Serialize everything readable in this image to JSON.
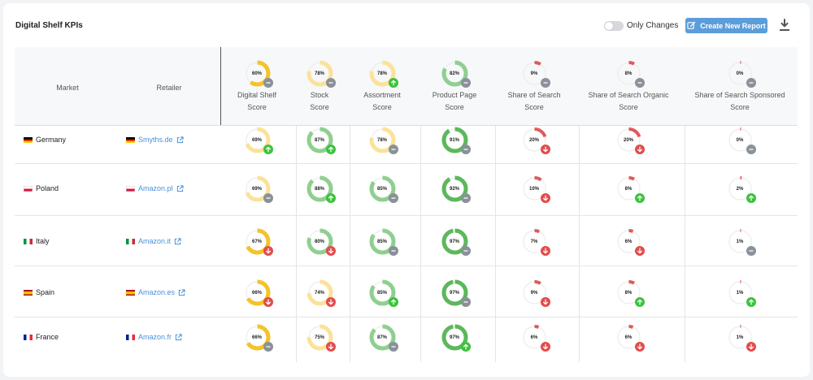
{
  "page": {
    "title": "Digital Shelf KPIs",
    "toggle_label": "Only Changes",
    "toggle_on": false,
    "create_label": "Create New Report",
    "icons": {
      "create": "edit-report-icon",
      "download": "download-icon",
      "external": "external-link-icon"
    }
  },
  "colors": {
    "yellow": "#f5c228",
    "yellow_light": "#fbe29a",
    "green": "#5cb85c",
    "green_light": "#8fcf8f",
    "red": "#e05a5a",
    "up": "#3cc23c",
    "down": "#e24c4c",
    "neutral": "#8a9199",
    "link": "#4a90d9"
  },
  "columns": {
    "market": "Market",
    "retailer": "Retailer",
    "kpis": [
      {
        "line1": "Digital Shelf",
        "line2": "Score",
        "pct": "60%",
        "value": 0.6,
        "tone": "yellow",
        "trend": "neutral"
      },
      {
        "line1": "Stock",
        "line2": "Score",
        "pct": "78%",
        "value": 0.78,
        "tone": "yellow_light",
        "trend": "neutral"
      },
      {
        "line1": "Assortment",
        "line2": "Score",
        "pct": "78%",
        "value": 0.78,
        "tone": "yellow_light",
        "trend": "up"
      },
      {
        "line1": "Product Page",
        "line2": "Score",
        "pct": "82%",
        "value": 0.82,
        "tone": "green_light",
        "trend": "neutral"
      },
      {
        "line1": "Share of Search",
        "line2": "Score",
        "pct": "9%",
        "value": 0.09,
        "tone": "red",
        "trend": "neutral"
      },
      {
        "line1": "Share of Search Organic",
        "line2": "Score",
        "pct": "8%",
        "value": 0.08,
        "tone": "red",
        "trend": "neutral"
      },
      {
        "line1": "Share of Search Sponsored",
        "line2": "Score",
        "pct": "0%",
        "value": 0.0,
        "tone": "red",
        "trend": "neutral"
      }
    ]
  },
  "rows": [
    {
      "market": "Germany",
      "retailer": "Smyths.de",
      "flag": [
        "#000000",
        "#dd0000",
        "#ffce00"
      ],
      "flag_dir": "h",
      "cells": [
        {
          "pct": "69%",
          "value": 0.69,
          "tone": "yellow_light",
          "trend": "up"
        },
        {
          "pct": "87%",
          "value": 0.87,
          "tone": "green_light",
          "trend": "up"
        },
        {
          "pct": "78%",
          "value": 0.78,
          "tone": "yellow_light",
          "trend": "neutral"
        },
        {
          "pct": "91%",
          "value": 0.91,
          "tone": "green",
          "trend": "neutral"
        },
        {
          "pct": "20%",
          "value": 0.2,
          "tone": "red",
          "trend": "down"
        },
        {
          "pct": "20%",
          "value": 0.2,
          "tone": "red",
          "trend": "down"
        },
        {
          "pct": "0%",
          "value": 0.0,
          "tone": "red",
          "trend": "neutral"
        }
      ]
    },
    {
      "market": "Poland",
      "retailer": "Amazon.pl",
      "flag": [
        "#ffffff",
        "#dc143c"
      ],
      "flag_dir": "h",
      "cells": [
        {
          "pct": "69%",
          "value": 0.69,
          "tone": "yellow_light",
          "trend": "neutral"
        },
        {
          "pct": "88%",
          "value": 0.88,
          "tone": "green_light",
          "trend": "up"
        },
        {
          "pct": "85%",
          "value": 0.85,
          "tone": "green_light",
          "trend": "neutral"
        },
        {
          "pct": "92%",
          "value": 0.92,
          "tone": "green",
          "trend": "neutral"
        },
        {
          "pct": "10%",
          "value": 0.1,
          "tone": "red",
          "trend": "down"
        },
        {
          "pct": "8%",
          "value": 0.08,
          "tone": "red",
          "trend": "up"
        },
        {
          "pct": "2%",
          "value": 0.02,
          "tone": "red",
          "trend": "up"
        }
      ]
    },
    {
      "market": "Italy",
      "retailer": "Amazon.it",
      "flag": [
        "#009246",
        "#ffffff",
        "#ce2b37"
      ],
      "flag_dir": "v",
      "cells": [
        {
          "pct": "67%",
          "value": 0.67,
          "tone": "yellow",
          "trend": "down"
        },
        {
          "pct": "80%",
          "value": 0.8,
          "tone": "green_light",
          "trend": "down"
        },
        {
          "pct": "85%",
          "value": 0.85,
          "tone": "green_light",
          "trend": "neutral"
        },
        {
          "pct": "97%",
          "value": 0.97,
          "tone": "green",
          "trend": "neutral"
        },
        {
          "pct": "7%",
          "value": 0.07,
          "tone": "red",
          "trend": "down"
        },
        {
          "pct": "6%",
          "value": 0.06,
          "tone": "red",
          "trend": "down"
        },
        {
          "pct": "1%",
          "value": 0.01,
          "tone": "red",
          "trend": "neutral"
        }
      ]
    },
    {
      "market": "Spain",
      "retailer": "Amazon.es",
      "flag": [
        "#aa151b",
        "#f1bf00",
        "#aa151b"
      ],
      "flag_dir": "h3",
      "cells": [
        {
          "pct": "66%",
          "value": 0.66,
          "tone": "yellow",
          "trend": "down"
        },
        {
          "pct": "74%",
          "value": 0.74,
          "tone": "yellow_light",
          "trend": "down"
        },
        {
          "pct": "85%",
          "value": 0.85,
          "tone": "green_light",
          "trend": "up"
        },
        {
          "pct": "97%",
          "value": 0.97,
          "tone": "green",
          "trend": "neutral"
        },
        {
          "pct": "9%",
          "value": 0.09,
          "tone": "red",
          "trend": "down"
        },
        {
          "pct": "8%",
          "value": 0.08,
          "tone": "red",
          "trend": "up"
        },
        {
          "pct": "1%",
          "value": 0.01,
          "tone": "red",
          "trend": "up"
        }
      ]
    },
    {
      "market": "France",
      "retailer": "Amazon.fr",
      "flag": [
        "#002395",
        "#ffffff",
        "#ed2939"
      ],
      "flag_dir": "v",
      "cells": [
        {
          "pct": "66%",
          "value": 0.66,
          "tone": "yellow",
          "trend": "neutral"
        },
        {
          "pct": "75%",
          "value": 0.75,
          "tone": "yellow_light",
          "trend": "down"
        },
        {
          "pct": "87%",
          "value": 0.87,
          "tone": "green_light",
          "trend": "neutral"
        },
        {
          "pct": "97%",
          "value": 0.97,
          "tone": "green",
          "trend": "up"
        },
        {
          "pct": "6%",
          "value": 0.06,
          "tone": "red",
          "trend": "down"
        },
        {
          "pct": "6%",
          "value": 0.06,
          "tone": "red",
          "trend": "down"
        },
        {
          "pct": "1%",
          "value": 0.01,
          "tone": "red",
          "trend": "down"
        }
      ]
    }
  ]
}
